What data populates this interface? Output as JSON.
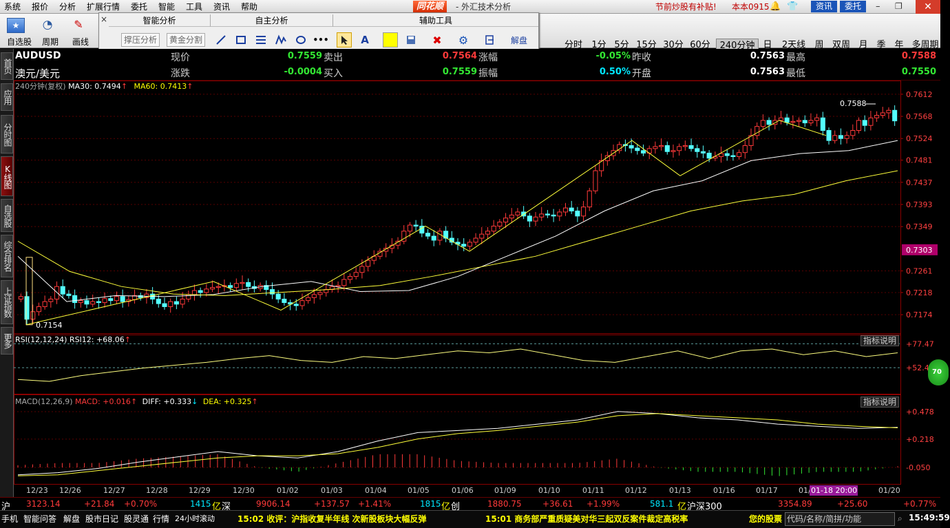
{
  "app": {
    "logo": "同花顺",
    "title": "- 外汇技术分析",
    "promo": "节前炒股有补贴!",
    "version": "本本0915"
  },
  "menu": [
    "系统",
    "报价",
    "分析",
    "扩展行情",
    "委托",
    "智能",
    "工具",
    "资讯",
    "帮助"
  ],
  "top_right_buttons": {
    "news": "资讯",
    "trade": "委托"
  },
  "toolbar": {
    "left": [
      "自选股",
      "周期",
      "画线"
    ],
    "periods": [
      "分时",
      "1分",
      "5分",
      "15分",
      "30分",
      "60分",
      "240分钟",
      "日",
      "2天线",
      "周",
      "双周",
      "月",
      "季",
      "年",
      "多周期"
    ],
    "active_period": "240分钟"
  },
  "analysis_panel": {
    "sections": [
      "智能分析",
      "自主分析",
      "辅助工具"
    ],
    "smart_buttons": [
      "撑压分析",
      "黄金分割"
    ],
    "explain_button": "解盘",
    "close_icon": "×"
  },
  "sidebar_tabs": [
    "首页",
    "应用",
    "分时图",
    "K线图",
    "自选股",
    "综合排名",
    "上证指数",
    "更多"
  ],
  "sidebar_active": "K线图",
  "quote": {
    "symbol": "AUDUSD",
    "name": "澳元/美元",
    "row1": [
      {
        "label": "现价",
        "value": "0.7559",
        "color": "green"
      },
      {
        "label": "卖出",
        "value": "0.7564",
        "color": "red"
      },
      {
        "label": "涨幅",
        "value": "-0.05%",
        "color": "green"
      },
      {
        "label": "昨收",
        "value": "0.7563",
        "color": "white"
      },
      {
        "label": "最高",
        "value": "0.7588",
        "color": "red"
      }
    ],
    "row2": [
      {
        "label": "涨跌",
        "value": "-0.0004",
        "color": "green"
      },
      {
        "label": "买入",
        "value": "0.7559",
        "color": "green"
      },
      {
        "label": "振幅",
        "value": "0.50%",
        "color": "cyan"
      },
      {
        "label": "开盘",
        "value": "0.7563",
        "color": "white"
      },
      {
        "label": "最低",
        "value": "0.7550",
        "color": "green"
      }
    ]
  },
  "indicators": {
    "main_label": "240分钟(复权)",
    "ma30_label": "MA30: 0.7494",
    "ma60_label": "MA60: 0.7413",
    "rsi_label": "RSI(12,12,24) RSI12: +68.06",
    "macd_name": "MACD(12,26,9)",
    "macd_val": "MACD: +0.016",
    "diff_val": "DIFF: +0.333",
    "dea_val": "DEA: +0.325",
    "explain": "指标说明",
    "high_mark": "0.7588",
    "low_mark": "0.7154",
    "last_price": "0.7303",
    "rsi_circle": "70"
  },
  "chart_data": {
    "type": "candlestick",
    "price_axis_ticks": [
      "0.7612",
      "0.7568",
      "0.7524",
      "0.7481",
      "0.7437",
      "0.7393",
      "0.7349",
      "0.7303",
      "0.7261",
      "0.7218",
      "0.7174"
    ],
    "rsi_axis_ticks": [
      "+77.47",
      "+52.41"
    ],
    "macd_axis_ticks": [
      "+0.478",
      "+0.218",
      "-0.050"
    ],
    "date_ticks": [
      "12/23",
      "12/26",
      "12/27",
      "12/28",
      "12/29",
      "12/30",
      "01/02",
      "01/03",
      "01/04",
      "01/05",
      "01/06",
      "01/09",
      "01/10",
      "01/11",
      "01/12",
      "01/13",
      "01/16",
      "01/17",
      "01/1",
      "01-18 20:00",
      "01/20"
    ],
    "ylim": [
      0.714,
      0.762
    ],
    "high": 0.7588,
    "low": 0.7154,
    "closes": [
      0.721,
      0.7165,
      0.718,
      0.719,
      0.72,
      0.7205,
      0.723,
      0.7215,
      0.7212,
      0.7198,
      0.7202,
      0.7195,
      0.72,
      0.7198,
      0.7206,
      0.7202,
      0.721,
      0.72,
      0.7204,
      0.7212,
      0.7208,
      0.7215,
      0.7205,
      0.7196,
      0.719,
      0.72,
      0.7195,
      0.7205,
      0.7214,
      0.7222,
      0.7218,
      0.7225,
      0.7228,
      0.723,
      0.7232,
      0.7228,
      0.7236,
      0.7238,
      0.723,
      0.7226,
      0.7232,
      0.7224,
      0.7215,
      0.7205,
      0.7198,
      0.7195,
      0.7192,
      0.7202,
      0.7208,
      0.7214,
      0.7218,
      0.7224,
      0.723,
      0.7232,
      0.7244,
      0.725,
      0.7258,
      0.727,
      0.7282,
      0.729,
      0.73,
      0.7306,
      0.7312,
      0.732,
      0.734,
      0.7352,
      0.735,
      0.7336,
      0.733,
      0.7322,
      0.734,
      0.7326,
      0.7318,
      0.7314,
      0.731,
      0.7318,
      0.7326,
      0.7334,
      0.734,
      0.735,
      0.7358,
      0.7366,
      0.7372,
      0.7378,
      0.737,
      0.736,
      0.7368,
      0.7374,
      0.7372,
      0.737,
      0.7378,
      0.7386,
      0.738,
      0.737,
      0.7388,
      0.742,
      0.746,
      0.748,
      0.749,
      0.75,
      0.7512,
      0.751,
      0.7505,
      0.75,
      0.7495,
      0.7504,
      0.7508,
      0.751,
      0.7498,
      0.75,
      0.7508,
      0.751,
      0.7504,
      0.7498,
      0.7495,
      0.7485,
      0.7488,
      0.7494,
      0.749,
      0.7488,
      0.7496,
      0.751,
      0.753,
      0.7548,
      0.756,
      0.7552,
      0.756,
      0.7565,
      0.7556,
      0.7558,
      0.756,
      0.7555,
      0.756,
      0.7565,
      0.754,
      0.752,
      0.753,
      0.7524,
      0.753,
      0.754,
      0.756,
      0.755,
      0.7565,
      0.757,
      0.7575,
      0.758,
      0.7559
    ],
    "ma30": [
      0.729,
      0.72,
      0.7212,
      0.721,
      0.7214,
      0.723,
      0.724,
      0.722,
      0.7222,
      0.725,
      0.729,
      0.733,
      0.738,
      0.742,
      0.744,
      0.748,
      0.7494,
      0.75,
      0.752
    ],
    "ma60": [
      0.732,
      0.726,
      0.723,
      0.7215,
      0.7212,
      0.7218,
      0.7224,
      0.7232,
      0.725,
      0.727,
      0.729,
      0.732,
      0.735,
      0.738,
      0.74,
      0.7413,
      0.744,
      0.746
    ],
    "zigzag_dates": [
      "12/23",
      "12/29",
      "01/02",
      "01/05",
      "01/06",
      "01/12",
      "01/13",
      "01/17",
      "01/18"
    ],
    "zigzag_values": [
      0.7154,
      0.724,
      0.7183,
      0.735,
      0.73,
      0.752,
      0.745,
      0.756,
      0.753
    ],
    "rsi": [
      40,
      38,
      44,
      48,
      52,
      55,
      58,
      62,
      65,
      60,
      58,
      64,
      62,
      66,
      70,
      68,
      72,
      66,
      60,
      58,
      64,
      70,
      62,
      70,
      72,
      66,
      70,
      64,
      68
    ],
    "macd_diff": [
      -0.12,
      -0.1,
      -0.06,
      0.0,
      0.05,
      0.1,
      0.06,
      0.04,
      0.1,
      0.2,
      0.28,
      0.3,
      0.32,
      0.36,
      0.4,
      0.48,
      0.46,
      0.42,
      0.4,
      0.36,
      0.34,
      0.32,
      0.33
    ],
    "macd_dea": [
      -0.13,
      -0.12,
      -0.08,
      -0.04,
      0.0,
      0.04,
      0.06,
      0.06,
      0.08,
      0.14,
      0.22,
      0.27,
      0.3,
      0.34,
      0.38,
      0.44,
      0.46,
      0.44,
      0.42,
      0.4,
      0.36,
      0.34,
      0.325
    ]
  },
  "status": {
    "sh_label": "沪",
    "sh_index": "3123.14",
    "sh_change": "+21.84",
    "sh_pct": "+0.70%",
    "sh_vol": "1415",
    "unit": "亿",
    "sz_label": "深",
    "sz_index": "9906.14",
    "sz_change": "+137.57",
    "sz_pct": "+1.41%",
    "cy_vol": "1815",
    "cy_label": "创",
    "cy_index": "1880.75",
    "cy_change": "+36.61",
    "cy_pct": "+1.99%",
    "hs_vol": "581.1",
    "hs_label": "沪深300",
    "hs_index": "3354.89",
    "hs_change": "+25.60",
    "hs_pct": "+0.77%",
    "cursor_date": "01-18 20:00"
  },
  "bottom": {
    "tabs": [
      "手机",
      "智能问答",
      "解盘",
      "股市日记",
      "股灵通",
      "行情",
      "24小时滚动"
    ],
    "news1": "15:02 收评：沪指收复半年线 次新股板块大幅反弹",
    "news2": "15:01 商务部严重质疑美对华三起双反案件裁定高税率",
    "my_stock": "您的股票",
    "search": "代码/名称/简拼/功能",
    "time": "15:49:59"
  }
}
